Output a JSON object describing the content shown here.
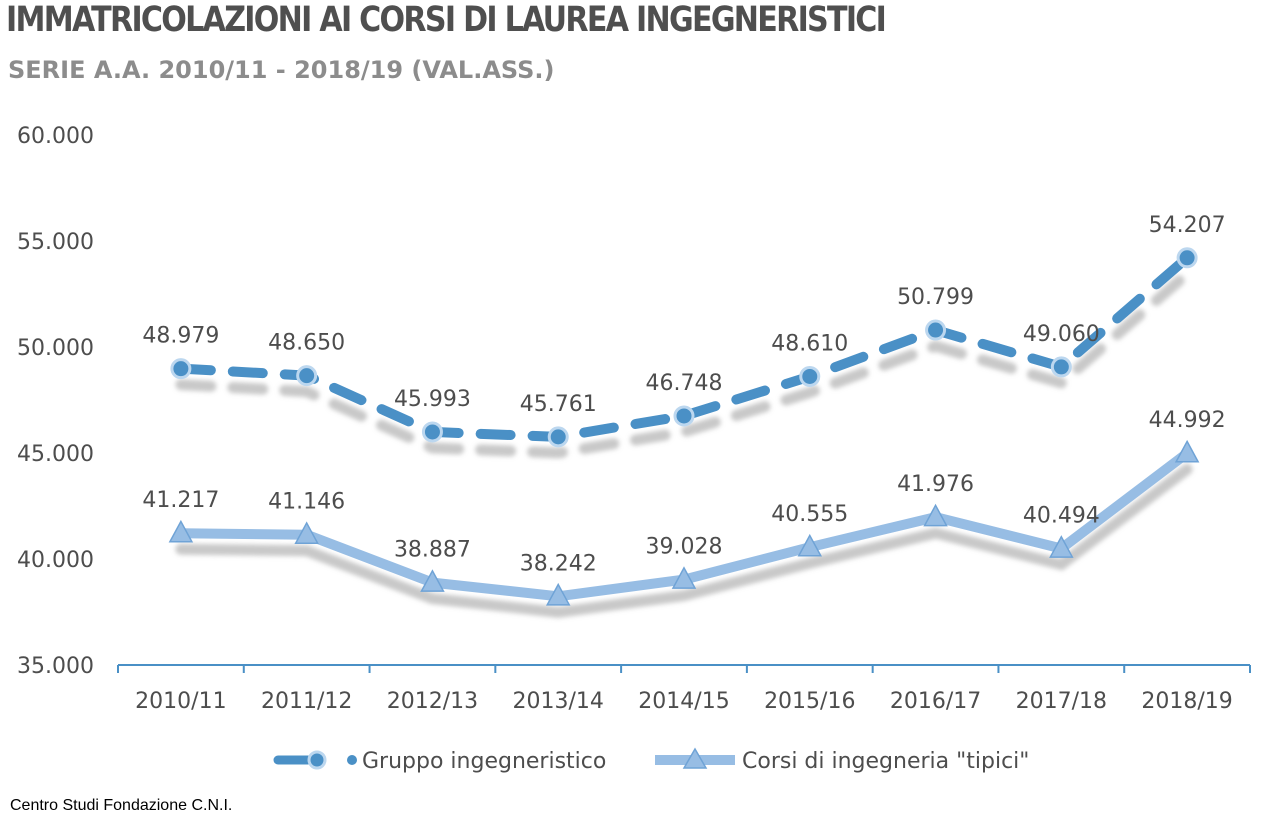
{
  "title": "IMMATRICOLAZIONI AI CORSI DI LAUREA INGEGNERISTICI",
  "subtitle": "SERIE A.A. 2010/11 - 2018/19 (VAL.ASS.)",
  "source": "Centro Studi Fondazione C.N.I.",
  "colors": {
    "series1": "#4a90c6",
    "series2": "#97bde4",
    "text": "#4d4d4d",
    "axis": "#4a90c6"
  },
  "chart_data": {
    "type": "line",
    "categories": [
      "2010/11",
      "2011/12",
      "2012/13",
      "2013/14",
      "2014/15",
      "2015/16",
      "2016/17",
      "2017/18",
      "2018/19"
    ],
    "y_ticks": [
      "35.000",
      "40.000",
      "45.000",
      "50.000",
      "55.000",
      "60.000"
    ],
    "ylim": [
      35000,
      60000
    ],
    "grid": false,
    "legend_position": "bottom",
    "series": [
      {
        "name": "Gruppo ingegneristico",
        "style": "dashed",
        "marker": "circle",
        "values": [
          48979,
          48650,
          45993,
          45761,
          46748,
          48610,
          50799,
          49060,
          54207
        ],
        "labels": [
          "48.979",
          "48.650",
          "45.993",
          "45.761",
          "46.748",
          "48.610",
          "50.799",
          "49.060",
          "54.207"
        ]
      },
      {
        "name": "Corsi di ingegneria \"tipici\"",
        "style": "solid",
        "marker": "triangle",
        "values": [
          41217,
          41146,
          38887,
          38242,
          39028,
          40555,
          41976,
          40494,
          44992
        ],
        "labels": [
          "41.217",
          "41.146",
          "38.887",
          "38.242",
          "39.028",
          "40.555",
          "41.976",
          "40.494",
          "44.992"
        ]
      }
    ]
  }
}
